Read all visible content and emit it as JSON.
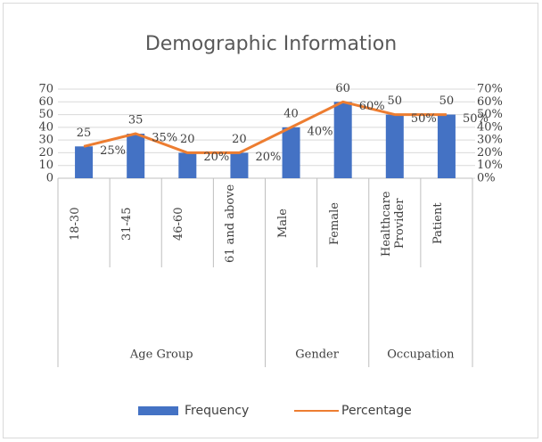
{
  "chart_data": {
    "type": "bar_line",
    "title": "Demographic Information",
    "categories": [
      "18-30",
      "31-45",
      "46-60",
      "61 and above",
      "Male",
      "Female",
      "Healthcare Provider",
      "Patient"
    ],
    "groups": [
      {
        "name": "Age Group",
        "count": 4
      },
      {
        "name": "Gender",
        "count": 2
      },
      {
        "name": "Occupation",
        "count": 2
      }
    ],
    "series": [
      {
        "name": "Frequency",
        "type": "bar",
        "color": "#4472c4",
        "values": [
          25,
          35,
          20,
          20,
          40,
          60,
          50,
          50
        ]
      },
      {
        "name": "Percentage",
        "type": "line",
        "axis": "y2",
        "color": "#ed7d31",
        "values": [
          25,
          35,
          20,
          20,
          40,
          60,
          50,
          50
        ],
        "value_labels": [
          "25%",
          "35%",
          "20%",
          "20%",
          "40%",
          "60%",
          "50%",
          "50%"
        ]
      }
    ],
    "ylim": [
      0,
      70
    ],
    "yticks": [
      0,
      10,
      20,
      30,
      40,
      50,
      60,
      70
    ],
    "y2lim": [
      0,
      70
    ],
    "y2ticks": [
      {
        "value": 0,
        "label": "0%"
      },
      {
        "value": 10,
        "label": "10%"
      },
      {
        "value": 20,
        "label": "20%"
      },
      {
        "value": 30,
        "label": "30%"
      },
      {
        "value": 40,
        "label": "40%"
      },
      {
        "value": 50,
        "label": "50%"
      },
      {
        "value": 60,
        "label": "60%"
      },
      {
        "value": 70,
        "label": "70%"
      }
    ],
    "grid": true,
    "legend": "bottom"
  }
}
